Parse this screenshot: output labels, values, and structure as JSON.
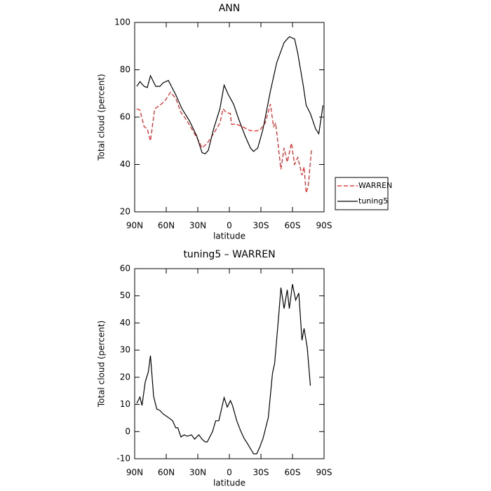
{
  "chart_data": [
    {
      "type": "line",
      "title": "ANN",
      "xlabel": "latitude",
      "ylabel": "Total cloud (percent)",
      "xlim": [
        90,
        -90
      ],
      "ylim": [
        20,
        100
      ],
      "xticks": [
        {
          "value": 90,
          "label": "90N"
        },
        {
          "value": 60,
          "label": "60N"
        },
        {
          "value": 30,
          "label": "30N"
        },
        0,
        {
          "value": -30,
          "label": "30S"
        },
        {
          "value": -60,
          "label": "60S"
        },
        {
          "value": -90,
          "label": "90S"
        }
      ],
      "yticks": [
        20,
        40,
        60,
        80,
        100
      ],
      "legend": "right",
      "series": [
        {
          "name": "WARREN",
          "color": "#e8191a",
          "style": "dashed",
          "x": [
            88,
            85,
            81,
            78,
            75,
            71,
            66,
            61,
            56,
            51,
            46,
            41,
            35,
            28,
            26,
            21,
            15,
            9,
            6,
            3,
            -1,
            -2,
            -7,
            -12,
            -19,
            -23,
            -29,
            -34,
            -39,
            -42,
            -44,
            -49,
            -52,
            -55,
            -59,
            -62,
            -65,
            -69,
            -71,
            -73,
            -75,
            -78
          ],
          "values": [
            63.5,
            63,
            56,
            55,
            50,
            63.5,
            65,
            67,
            70.5,
            68,
            62,
            59,
            54.5,
            49,
            47,
            49,
            53,
            57.5,
            63.5,
            62,
            61.5,
            57,
            57,
            56,
            54.5,
            54,
            54.5,
            57.5,
            65.5,
            56,
            57.5,
            38,
            47,
            41,
            49,
            40,
            43,
            35.5,
            39,
            28,
            31,
            46
          ]
        },
        {
          "name": "tuning5",
          "color": "#000000",
          "style": "solid",
          "x": [
            88,
            85,
            81,
            78,
            75,
            70,
            66,
            63,
            58,
            51,
            45,
            38,
            31,
            26,
            23,
            20,
            15,
            9,
            5,
            1,
            -4,
            -9,
            -15,
            -20,
            -23,
            -27,
            -32,
            -39,
            -45,
            -52,
            -57,
            -62,
            -65,
            -70,
            -73,
            -77,
            -82,
            -85,
            -89
          ],
          "values": [
            73,
            75,
            73,
            72.5,
            77.5,
            73,
            73,
            74.5,
            75.5,
            69.5,
            63.5,
            58.5,
            52,
            45,
            44.5,
            46,
            55,
            63.5,
            73.5,
            69.5,
            65.5,
            59,
            52,
            47,
            45.5,
            47,
            55,
            71,
            83,
            91.5,
            94,
            93,
            87,
            74,
            65,
            61.5,
            55,
            53,
            65
          ]
        }
      ]
    },
    {
      "type": "line",
      "title": "tuning5 – WARREN",
      "xlabel": "latitude",
      "ylabel": "Total cloud (percent)",
      "xlim": [
        90,
        -90
      ],
      "ylim": [
        -10,
        60
      ],
      "xticks": [
        {
          "value": 90,
          "label": "90N"
        },
        {
          "value": 60,
          "label": "60N"
        },
        {
          "value": 30,
          "label": "30N"
        },
        0,
        {
          "value": -30,
          "label": "30S"
        },
        {
          "value": -60,
          "label": "60S"
        },
        {
          "value": -90,
          "label": "90S"
        }
      ],
      "yticks": [
        -10,
        0,
        10,
        20,
        30,
        40,
        50,
        60
      ],
      "color": "#000000",
      "x": [
        88,
        85,
        83,
        80,
        77,
        75,
        72,
        69,
        66,
        63,
        58,
        54,
        51,
        49,
        46,
        43,
        40,
        36,
        33,
        29,
        26,
        23,
        21,
        16,
        13,
        10,
        5,
        2,
        -1,
        -3,
        -7,
        -11,
        -14,
        -17,
        -21,
        -23,
        -26,
        -29,
        -32,
        -37,
        -41,
        -43,
        -47,
        -49,
        -52,
        -55,
        -57,
        -60,
        -63,
        -66,
        -69,
        -71,
        -74,
        -77
      ],
      "values": [
        10.4,
        12.7,
        9.6,
        18.2,
        22,
        28,
        13,
        8.3,
        7.8,
        6.5,
        5.2,
        4,
        1.4,
        1.4,
        -2,
        -1.2,
        -1.7,
        -1.2,
        -2.8,
        -1.2,
        -2.8,
        -3.8,
        -3.8,
        0,
        4,
        4,
        12.5,
        9,
        11.4,
        9.6,
        4,
        0,
        -2.5,
        -4.3,
        -6.9,
        -8.2,
        -8.2,
        -5.6,
        -2.5,
        5.2,
        21.5,
        25,
        43.2,
        53,
        45.3,
        52.2,
        45.3,
        54.3,
        48.4,
        51,
        33.6,
        38,
        31,
        16.9
      ]
    }
  ]
}
